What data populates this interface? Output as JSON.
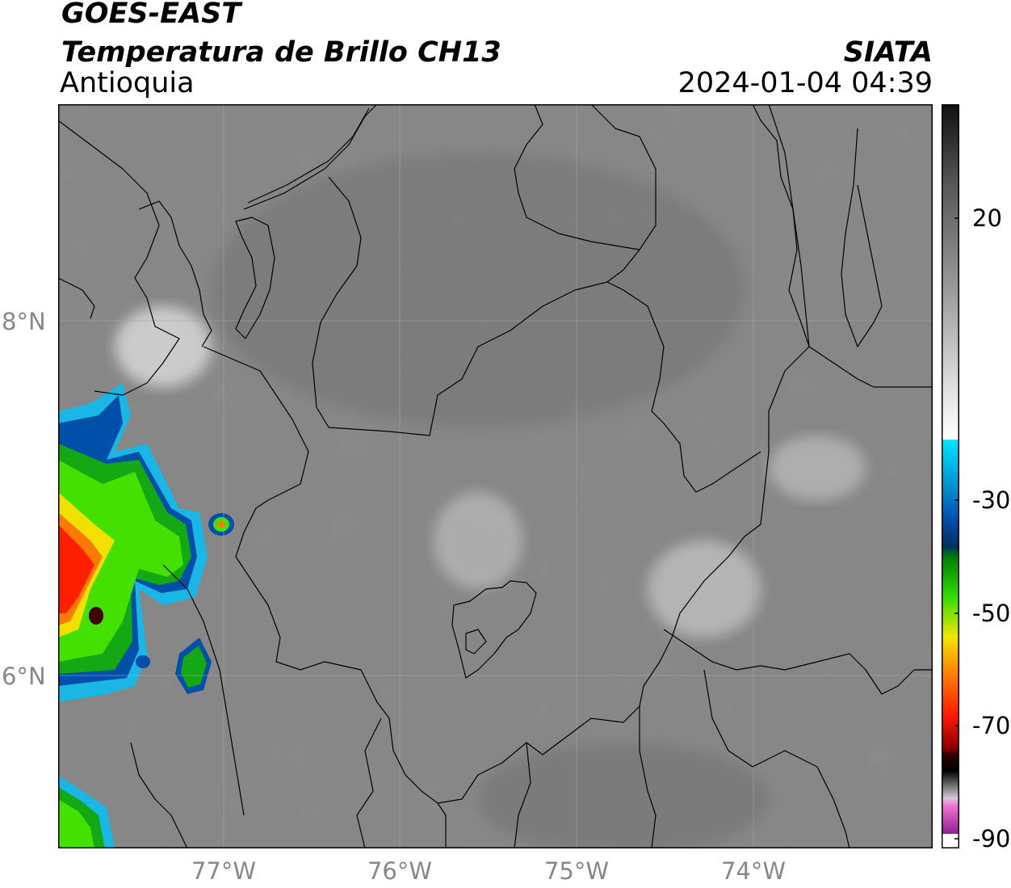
{
  "header": {
    "satellite": "GOES-EAST",
    "product": "Temperatura de Brillo CH13",
    "region": "Antioquia",
    "organization": "SIATA",
    "timestamp": "2024-01-04 04:39"
  },
  "map": {
    "lat_labels": [
      "8°N",
      "6°N"
    ],
    "lon_labels": [
      "77°W",
      "76°W",
      "75°W",
      "74°W"
    ],
    "background_gray": "#888888",
    "gridline_color": "#a0a0a0"
  },
  "colorbar": {
    "tick_labels": [
      "20",
      "-30",
      "-50",
      "-70",
      "-90"
    ],
    "ramp_colors": [
      "#101010",
      "#5a5a5a",
      "#9a9a9a",
      "#e0e0e0",
      "#ffffff",
      "#00e5ff",
      "#0050b0",
      "#008000",
      "#33dd00",
      "#f2e600",
      "#ff7a00",
      "#ff1a00",
      "#300000",
      "#777777",
      "#d8c8d8",
      "#e040c0",
      "#902090"
    ]
  }
}
